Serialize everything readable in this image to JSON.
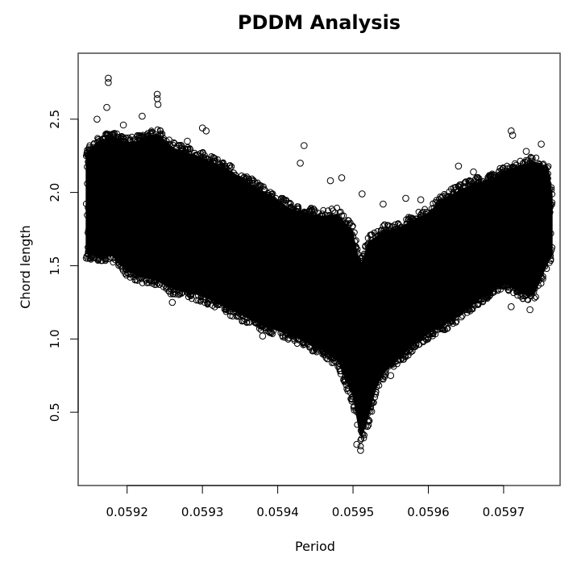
{
  "chart_data": {
    "type": "scatter",
    "title": "PDDM Analysis",
    "xlabel": "Period",
    "ylabel": "Chord length",
    "xlim": [
      0.059135,
      0.059775
    ],
    "ylim": [
      0.0,
      2.95
    ],
    "xticks": [
      {
        "value": 0.0592,
        "label": "0.0592"
      },
      {
        "value": 0.0593,
        "label": "0.0593"
      },
      {
        "value": 0.0594,
        "label": "0.0594"
      },
      {
        "value": 0.0595,
        "label": "0.0595"
      },
      {
        "value": 0.0596,
        "label": "0.0596"
      },
      {
        "value": 0.0597,
        "label": "0.0597"
      }
    ],
    "yticks": [
      {
        "value": 0.5,
        "label": "0.5"
      },
      {
        "value": 1.0,
        "label": "1.0"
      },
      {
        "value": 1.5,
        "label": "1.5"
      },
      {
        "value": 2.0,
        "label": "2.0"
      },
      {
        "value": 2.5,
        "label": "2.5"
      }
    ],
    "grid": false,
    "marker": "open-circle",
    "color": "#000000",
    "envelope": {
      "x": [
        0.059145,
        0.05916,
        0.05918,
        0.0592,
        0.05922,
        0.05924,
        0.05926,
        0.0593,
        0.05934,
        0.05938,
        0.05942,
        0.05946,
        0.05948,
        0.0595,
        0.05951,
        0.05952,
        0.05953,
        0.05954,
        0.05956,
        0.05958,
        0.0596,
        0.05962,
        0.05964,
        0.05966,
        0.05968,
        0.0597,
        0.05972,
        0.05974,
        0.05976,
        0.059765
      ],
      "lower": [
        1.55,
        1.53,
        1.53,
        1.42,
        1.38,
        1.35,
        1.3,
        1.25,
        1.15,
        1.05,
        0.98,
        0.88,
        0.8,
        0.55,
        0.25,
        0.4,
        0.6,
        0.72,
        0.82,
        0.92,
        1.0,
        1.05,
        1.12,
        1.2,
        1.28,
        1.35,
        1.28,
        1.25,
        1.5,
        1.55
      ],
      "upper": [
        2.3,
        2.38,
        2.42,
        2.38,
        2.4,
        2.45,
        2.35,
        2.28,
        2.18,
        2.05,
        1.92,
        1.88,
        1.9,
        1.78,
        1.55,
        1.72,
        1.74,
        1.78,
        1.8,
        1.85,
        1.9,
        2.0,
        2.05,
        2.1,
        2.12,
        2.18,
        2.22,
        2.25,
        2.2,
        2.0
      ]
    },
    "outliers": [
      {
        "x": 0.059175,
        "y": 2.78
      },
      {
        "x": 0.059175,
        "y": 2.75
      },
      {
        "x": 0.059173,
        "y": 2.58
      },
      {
        "x": 0.05924,
        "y": 2.67
      },
      {
        "x": 0.05924,
        "y": 2.64
      },
      {
        "x": 0.059241,
        "y": 2.6
      },
      {
        "x": 0.05922,
        "y": 2.52
      },
      {
        "x": 0.0593,
        "y": 2.44
      },
      {
        "x": 0.059305,
        "y": 2.42
      },
      {
        "x": 0.05928,
        "y": 2.35
      },
      {
        "x": 0.059195,
        "y": 2.46
      },
      {
        "x": 0.05916,
        "y": 2.5
      },
      {
        "x": 0.059435,
        "y": 2.32
      },
      {
        "x": 0.05939,
        "y": 2.0
      },
      {
        "x": 0.05943,
        "y": 2.2
      },
      {
        "x": 0.05947,
        "y": 2.08
      },
      {
        "x": 0.059485,
        "y": 2.1
      },
      {
        "x": 0.059512,
        "y": 1.99
      },
      {
        "x": 0.05954,
        "y": 1.92
      },
      {
        "x": 0.05957,
        "y": 1.96
      },
      {
        "x": 0.05959,
        "y": 1.95
      },
      {
        "x": 0.05964,
        "y": 2.18
      },
      {
        "x": 0.05966,
        "y": 2.14
      },
      {
        "x": 0.05971,
        "y": 2.42
      },
      {
        "x": 0.059712,
        "y": 2.39
      },
      {
        "x": 0.05975,
        "y": 2.33
      },
      {
        "x": 0.05973,
        "y": 2.28
      },
      {
        "x": 0.05951,
        "y": 0.24
      },
      {
        "x": 0.059505,
        "y": 0.28
      },
      {
        "x": 0.05971,
        "y": 1.22
      },
      {
        "x": 0.059735,
        "y": 1.2
      },
      {
        "x": 0.05926,
        "y": 1.25
      },
      {
        "x": 0.05938,
        "y": 1.02
      },
      {
        "x": 0.05955,
        "y": 0.75
      }
    ]
  }
}
